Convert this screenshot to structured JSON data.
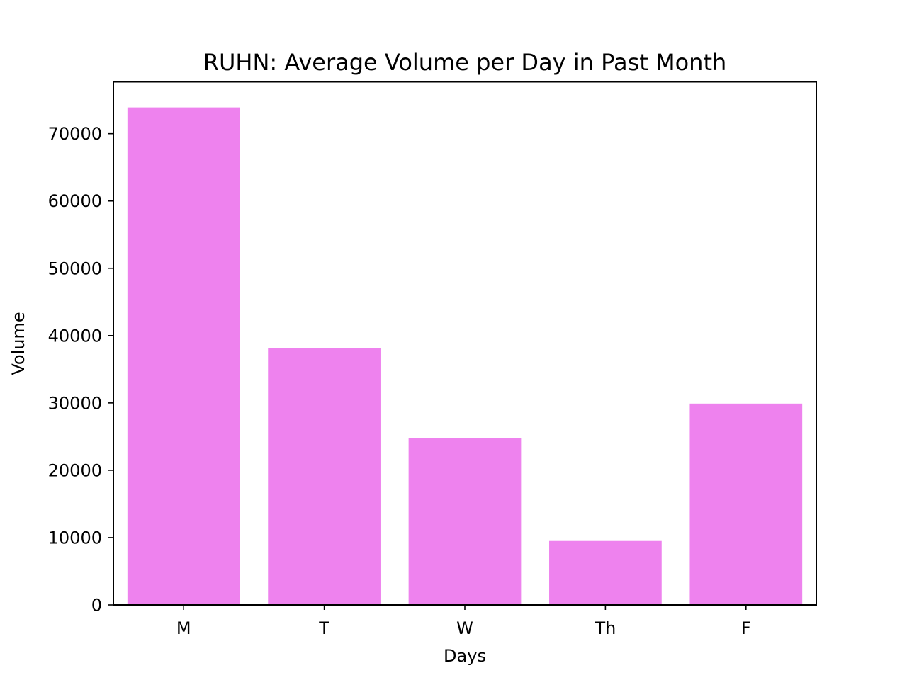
{
  "chart_data": {
    "type": "bar",
    "title": "RUHN: Average Volume per Day in Past Month",
    "xlabel": "Days",
    "ylabel": "Volume",
    "categories": [
      "M",
      "T",
      "W",
      "Th",
      "F"
    ],
    "values": [
      73900,
      38100,
      24800,
      9500,
      29900
    ],
    "ylim": [
      0,
      77700
    ],
    "yticks": [
      0,
      10000,
      20000,
      30000,
      40000,
      50000,
      60000,
      70000
    ],
    "grid": false,
    "bar_color": "#ee82ee"
  }
}
